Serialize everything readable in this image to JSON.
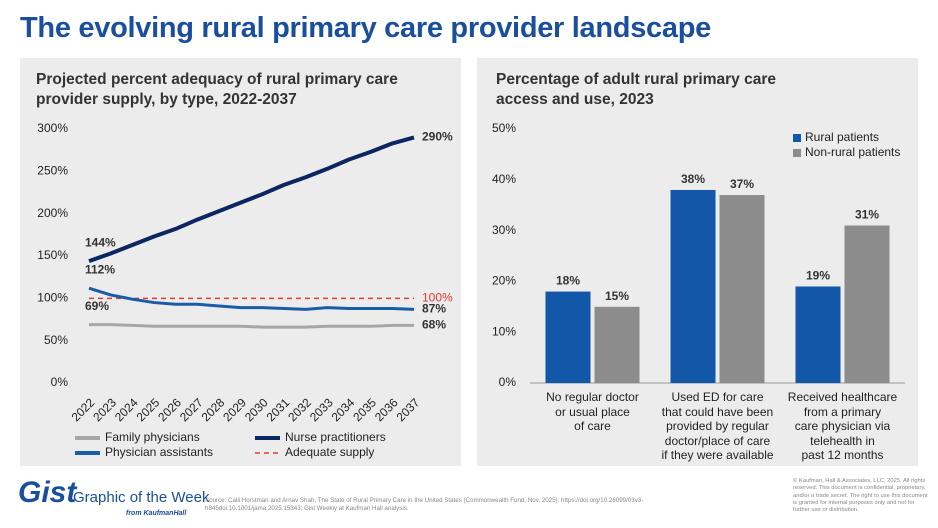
{
  "title": "The evolving rural primary care provider landscape",
  "chart_data": [
    {
      "type": "line",
      "title": "Projected percent adequacy of rural primary care provider supply, by type, 2022-2037",
      "x": [
        2022,
        2023,
        2024,
        2025,
        2026,
        2027,
        2028,
        2029,
        2030,
        2031,
        2032,
        2033,
        2034,
        2035,
        2036,
        2037
      ],
      "xlim": [
        2022,
        2037
      ],
      "xticks": [
        2022,
        2023,
        2024,
        2025,
        2026,
        2027,
        2028,
        2029,
        2030,
        2031,
        2032,
        2033,
        2034,
        2035,
        2036,
        2037
      ],
      "ylim": [
        0,
        300
      ],
      "yticks": [
        {
          "value": 0,
          "label": "0%"
        },
        {
          "value": 50,
          "label": "50%"
        },
        {
          "value": 100,
          "label": "100%"
        },
        {
          "value": 150,
          "label": "150%"
        },
        {
          "value": 200,
          "label": "200%"
        },
        {
          "value": 250,
          "label": "250%"
        },
        {
          "value": 300,
          "label": "300%"
        }
      ],
      "grid": false,
      "series": [
        {
          "name": "Family physicians",
          "color": "#a6a6a6",
          "line_width": 3,
          "line_style": "solid",
          "values": [
            69,
            69,
            68,
            67,
            67,
            67,
            67,
            67,
            66,
            66,
            66,
            67,
            67,
            67,
            68,
            68
          ],
          "value_labels": [
            "69%",
            null,
            null,
            null,
            null,
            null,
            null,
            null,
            null,
            null,
            null,
            null,
            null,
            null,
            null,
            "68%"
          ]
        },
        {
          "name": "Nurse practitioners",
          "color": "#0b2660",
          "line_width": 4,
          "line_style": "solid",
          "values": [
            144,
            153,
            163,
            173,
            182,
            193,
            203,
            213,
            223,
            234,
            243,
            253,
            264,
            273,
            283,
            290
          ],
          "value_labels": [
            "144%",
            null,
            null,
            null,
            null,
            null,
            null,
            null,
            null,
            null,
            null,
            null,
            null,
            null,
            null,
            "290%"
          ]
        },
        {
          "name": "Physician assistants",
          "color": "#1a5ca8",
          "line_width": 3,
          "line_style": "solid",
          "values": [
            112,
            104,
            99,
            95,
            93,
            93,
            91,
            89,
            89,
            88,
            87,
            89,
            88,
            88,
            88,
            87
          ],
          "value_labels": [
            "112%",
            null,
            null,
            null,
            null,
            null,
            null,
            null,
            null,
            null,
            null,
            null,
            null,
            null,
            null,
            "87%"
          ]
        },
        {
          "name": "Adequate supply",
          "color": "#e53935",
          "line_width": 1.5,
          "line_style": "dashed",
          "values": [
            100,
            100,
            100,
            100,
            100,
            100,
            100,
            100,
            100,
            100,
            100,
            100,
            100,
            100,
            100,
            100
          ],
          "value_labels": [
            null,
            null,
            null,
            null,
            null,
            null,
            null,
            null,
            null,
            null,
            null,
            null,
            null,
            null,
            null,
            "100%"
          ]
        }
      ],
      "legend": "bottom"
    },
    {
      "type": "bar",
      "title": "Percentage of adult rural primary care access and use, 2023",
      "categories": [
        "No regular doctor\nor usual place\nof care",
        "Used ED for care\nthat could have been\nprovided by regular\ndoctor/place of care\nif they were available",
        "Received healthcare\nfrom a primary\ncare physician via\ntelehealth in\npast 12 months"
      ],
      "ylim": [
        0,
        50
      ],
      "yticks": [
        {
          "value": 0,
          "label": "0%"
        },
        {
          "value": 10,
          "label": "10%"
        },
        {
          "value": 20,
          "label": "20%"
        },
        {
          "value": 30,
          "label": "30%"
        },
        {
          "value": 40,
          "label": "40%"
        },
        {
          "value": 50,
          "label": "50%"
        }
      ],
      "grid": false,
      "series": [
        {
          "name": "Rural patients",
          "color": "#1358a8",
          "values": [
            18,
            38,
            19
          ],
          "value_labels": [
            "18%",
            "38%",
            "19%"
          ]
        },
        {
          "name": "Non-rural patients",
          "color": "#8c8c8c",
          "values": [
            15,
            37,
            31
          ],
          "value_labels": [
            "15%",
            "37%",
            "31%"
          ]
        }
      ],
      "legend": "upper right"
    }
  ],
  "footer": {
    "brand": "Gist",
    "tagline": "Graphic of the Week",
    "from": "from KaufmanHall",
    "source": "Source: Calli Horstman and Arnav Shah, The State of Rural Primary Care in the United States (Commonwealth Fund, Nov. 2025). https://doi.org/10.26099/03v3-h845doi:10.1001/jama.2025.15343; Gist Weekly at Kaufman Hall analysis.",
    "copyright": "© Kaufman, Hall & Associates, LLC, 2025. All rights reserved. This document is confidential, proprietary, and/or a trade secret. The right to use this document is granted for internal purposes only and not for further use or distribution."
  }
}
